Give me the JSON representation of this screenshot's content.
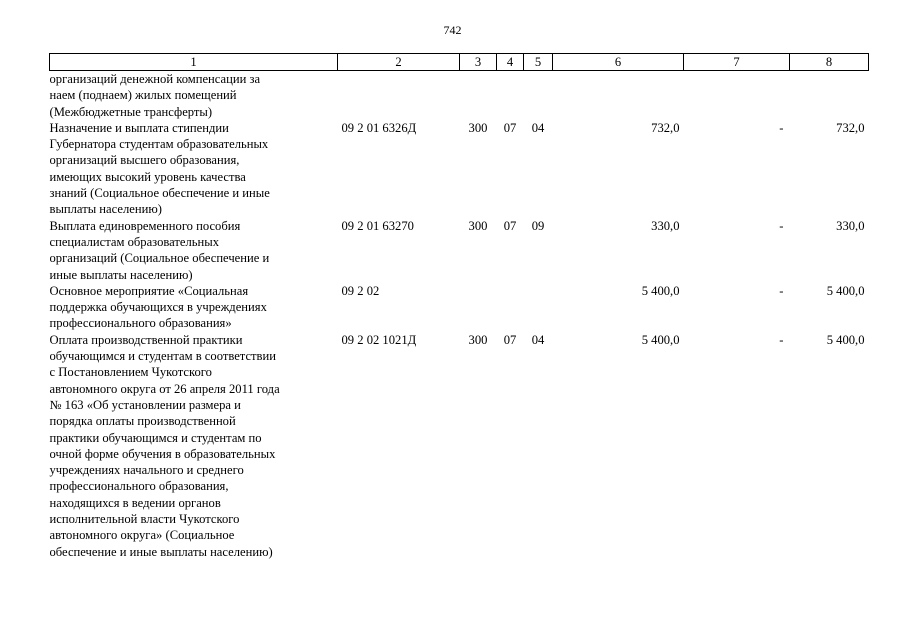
{
  "page_number": "742",
  "table": {
    "headers": [
      "1",
      "2",
      "3",
      "4",
      "5",
      "6",
      "7",
      "8"
    ],
    "rows": [
      {
        "description_lines": [
          "организаций денежной компенсации за",
          "наем (поднаем) жилых помещений",
          "(Межбюджетные трансферты)"
        ],
        "code": "",
        "c3": "",
        "c4": "",
        "c5": "",
        "c6": "",
        "c7": "",
        "c8": ""
      },
      {
        "description_lines": [
          "Назначение и выплата стипендии",
          "Губернатора студентам образовательных",
          "организаций высшего образования,",
          "имеющих высокий уровень качества",
          "знаний (Социальное обеспечение и иные",
          "выплаты населению)"
        ],
        "code": "09 2 01 6326Д",
        "c3": "300",
        "c4": "07",
        "c5": "04",
        "c6": "732,0",
        "c7": "-",
        "c8": "732,0"
      },
      {
        "description_lines": [
          "Выплата единовременного пособия",
          "специалистам образовательных",
          "организаций (Социальное обеспечение и",
          "иные выплаты населению)"
        ],
        "code": "09 2 01 63270",
        "c3": "300",
        "c4": "07",
        "c5": "09",
        "c6": "330,0",
        "c7": "-",
        "c8": "330,0"
      },
      {
        "description_lines": [
          "Основное мероприятие «Социальная",
          "поддержка обучающихся в учреждениях",
          "профессионального образования»"
        ],
        "code": "09 2 02",
        "c3": "",
        "c4": "",
        "c5": "",
        "c6": "5 400,0",
        "c7": "-",
        "c8": "5 400,0"
      },
      {
        "description_lines": [
          "Оплата производственной практики",
          "обучающимся и студентам в соответствии",
          "с Постановлением Чукотского",
          "автономного округа от 26 апреля 2011 года",
          "№ 163 «Об установлении размера и",
          "порядка оплаты производственной",
          "практики обучающимся и студентам по",
          "очной форме обучения в образовательных",
          "учреждениях начального и среднего",
          "профессионального образования,",
          "находящихся в ведении органов",
          "исполнительной власти Чукотского",
          "автономного округа» (Социальное",
          "обеспечение и иные выплаты населению)"
        ],
        "code": "09 2 02 1021Д",
        "c3": "300",
        "c4": "07",
        "c5": "04",
        "c6": "5 400,0",
        "c7": "-",
        "c8": "5 400,0"
      }
    ]
  }
}
